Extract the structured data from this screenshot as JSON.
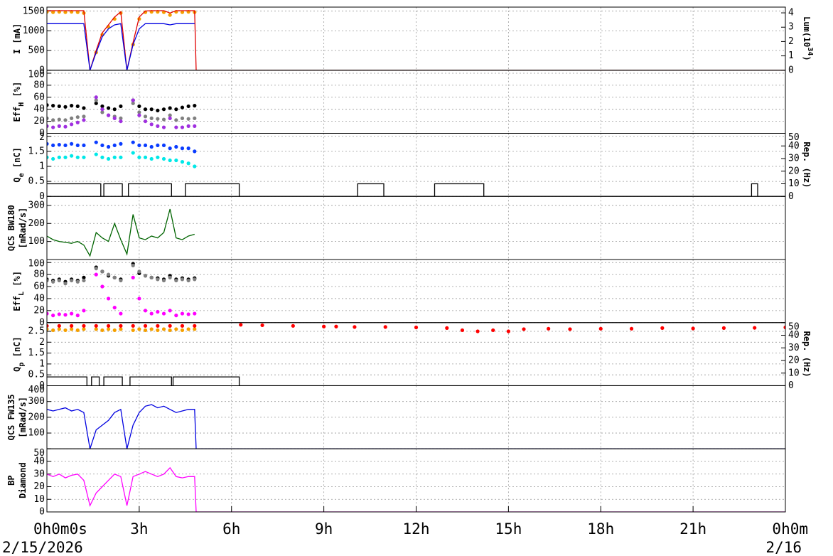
{
  "date_labels": [
    "2/15/2026",
    "2/16"
  ],
  "chart_data": [
    {
      "type": "line",
      "ylabel": [
        [
          {
            "text": "I [mA]"
          }
        ]
      ],
      "y2label": [
        [
          {
            "text": "Lum(10"
          },
          {
            "text": "34",
            "sup": true
          },
          {
            "text": ")"
          }
        ]
      ],
      "xlim": [
        0,
        24
      ],
      "ylim": [
        0,
        1600
      ],
      "yticks": [
        0,
        500,
        1000,
        1500
      ],
      "y2lim": [
        0,
        4.4
      ],
      "y2ticks": [
        0,
        1,
        2,
        3,
        4
      ],
      "grid": true,
      "x": [
        0,
        0.2,
        0.4,
        0.6,
        0.8,
        1,
        1.2,
        1.4,
        1.6,
        1.8,
        2,
        2.2,
        2.4,
        2.6,
        2.8,
        3,
        3.2,
        3.4,
        3.6,
        3.8,
        4,
        4.2,
        4.4,
        4.6,
        4.8
      ],
      "series": [
        {
          "style": "scatter",
          "color": "#f5a000",
          "values": [
            1480,
            1470,
            1480,
            1470,
            1480,
            1470,
            1450,
            null,
            450,
            900,
            1100,
            1300,
            1450,
            null,
            650,
            1300,
            1470,
            1480,
            1480,
            1470,
            1400,
            1480,
            1470,
            1480,
            1470
          ]
        },
        {
          "style": "line",
          "color": "#e00000",
          "x": [
            0,
            0.2,
            0.4,
            0.6,
            0.8,
            1,
            1.2,
            1.4,
            1.6,
            1.8,
            2,
            2.2,
            2.4,
            2.6,
            2.8,
            3,
            3.2,
            3.4,
            3.6,
            3.8,
            4,
            4.2,
            4.4,
            4.6,
            4.8,
            4.85,
            24
          ],
          "values": [
            1510,
            1510,
            1510,
            1510,
            1510,
            1510,
            1510,
            0,
            500,
            950,
            1150,
            1350,
            1480,
            0,
            700,
            1350,
            1500,
            1510,
            1510,
            1510,
            1450,
            1510,
            1510,
            1510,
            1510,
            0,
            0
          ]
        },
        {
          "style": "line",
          "color": "#0000e0",
          "values": [
            1180,
            1180,
            1180,
            1180,
            1180,
            1180,
            1180,
            0,
            450,
            850,
            1050,
            1150,
            1180,
            0,
            650,
            1050,
            1180,
            1180,
            1180,
            1180,
            1150,
            1180,
            1180,
            1180,
            1180
          ]
        }
      ]
    },
    {
      "type": "line",
      "ylabel": [
        [
          {
            "text": "Eff"
          },
          {
            "text": "H",
            "sub": true
          },
          {
            "text": " [%]"
          }
        ]
      ],
      "xlim": [
        0,
        24
      ],
      "ylim": [
        0,
        105
      ],
      "yticks": [
        0,
        20,
        40,
        60,
        80,
        100
      ],
      "grid": true,
      "x": [
        0,
        0.2,
        0.4,
        0.6,
        0.8,
        1,
        1.2,
        1.4,
        1.6,
        1.8,
        2,
        2.2,
        2.4,
        2.6,
        2.8,
        3,
        3.2,
        3.4,
        3.6,
        3.8,
        4,
        4.2,
        4.4,
        4.6,
        4.8
      ],
      "series": [
        {
          "style": "scatter",
          "color": "#000000",
          "values": [
            47,
            46,
            45,
            44,
            46,
            45,
            42,
            null,
            50,
            45,
            42,
            40,
            45,
            null,
            55,
            45,
            40,
            40,
            38,
            40,
            42,
            40,
            43,
            45,
            46
          ]
        },
        {
          "style": "scatter",
          "color": "#808080",
          "values": [
            25,
            22,
            23,
            22,
            25,
            27,
            28,
            null,
            55,
            35,
            30,
            28,
            25,
            null,
            50,
            35,
            28,
            25,
            24,
            23,
            30,
            22,
            25,
            24,
            25
          ]
        },
        {
          "style": "scatter",
          "color": "#a030e0",
          "values": [
            12,
            10,
            12,
            11,
            15,
            18,
            22,
            null,
            60,
            40,
            30,
            25,
            20,
            null,
            55,
            30,
            20,
            15,
            12,
            10,
            25,
            10,
            10,
            12,
            12
          ]
        }
      ]
    },
    {
      "type": "line",
      "ylabel": [
        [
          {
            "text": "Q"
          },
          {
            "text": "e",
            "sub": true
          },
          {
            "text": " [nC]"
          }
        ]
      ],
      "y2label": [
        [
          {
            "text": "Rep. (Hz)"
          }
        ]
      ],
      "xlim": [
        0,
        24
      ],
      "ylim": [
        0,
        2.1
      ],
      "yticks": [
        0,
        0.5,
        1,
        1.5,
        2
      ],
      "y2lim": [
        0,
        50
      ],
      "y2ticks": [
        0,
        10,
        20,
        30,
        40,
        50
      ],
      "grid": true,
      "x": [
        0,
        0.2,
        0.4,
        0.6,
        0.8,
        1,
        1.2,
        1.4,
        1.6,
        1.8,
        2,
        2.2,
        2.4,
        2.6,
        2.8,
        3,
        3.2,
        3.4,
        3.6,
        3.8,
        4,
        4.2,
        4.4,
        4.6,
        4.8
      ],
      "series": [
        {
          "style": "scatter",
          "color": "#0a3cff",
          "values": [
            1.75,
            1.7,
            1.72,
            1.7,
            1.75,
            1.7,
            1.7,
            null,
            1.8,
            1.7,
            1.65,
            1.7,
            1.75,
            null,
            1.8,
            1.7,
            1.7,
            1.65,
            1.7,
            1.7,
            1.6,
            1.65,
            1.6,
            1.6,
            1.5
          ]
        },
        {
          "style": "scatter",
          "color": "#00e8e8",
          "values": [
            1.3,
            1.25,
            1.3,
            1.3,
            1.35,
            1.3,
            1.3,
            null,
            1.4,
            1.3,
            1.25,
            1.3,
            1.3,
            null,
            1.45,
            1.3,
            1.3,
            1.25,
            1.3,
            1.25,
            1.2,
            1.2,
            1.15,
            1.1,
            1.0
          ]
        },
        {
          "style": "line",
          "axis": "y2",
          "color": "#000000",
          "x": [
            0,
            1.75,
            1.75,
            1.85,
            1.85,
            2.45,
            2.45,
            2.65,
            2.65,
            4.05,
            4.05,
            4.5,
            4.5,
            6.25,
            6.25,
            10.1,
            10.1,
            10.95,
            10.95,
            12.6,
            12.6,
            14.2,
            14.2,
            22.9,
            22.9,
            23.1,
            23.1,
            24
          ],
          "values": [
            10,
            10,
            0,
            0,
            10,
            10,
            0,
            0,
            10,
            10,
            0,
            0,
            10,
            10,
            0,
            0,
            10,
            10,
            0,
            0,
            10,
            10,
            0,
            0,
            10,
            10,
            0,
            0
          ]
        }
      ]
    },
    {
      "type": "line",
      "ylabel": [
        [
          {
            "text": "QCS BW180"
          }
        ],
        [
          {
            "text": "[mRad/s]"
          }
        ]
      ],
      "xlim": [
        0,
        24
      ],
      "ylim": [
        0,
        350
      ],
      "yticks": [
        100,
        200,
        300
      ],
      "grid": true,
      "x": [
        0,
        0.2,
        0.4,
        0.6,
        0.8,
        1,
        1.2,
        1.4,
        1.6,
        1.8,
        2,
        2.2,
        2.4,
        2.6,
        2.8,
        3,
        3.2,
        3.4,
        3.6,
        3.8,
        4,
        4.2,
        4.4,
        4.6,
        4.8
      ],
      "series": [
        {
          "style": "line",
          "color": "#006400",
          "values": [
            130,
            110,
            100,
            95,
            90,
            100,
            80,
            20,
            150,
            120,
            100,
            200,
            110,
            30,
            250,
            120,
            110,
            130,
            120,
            150,
            280,
            120,
            110,
            130,
            140
          ]
        }
      ]
    },
    {
      "type": "line",
      "ylabel": [
        [
          {
            "text": "Eff"
          },
          {
            "text": "L",
            "sub": true
          },
          {
            "text": " [%]"
          }
        ]
      ],
      "xlim": [
        0,
        24
      ],
      "ylim": [
        0,
        105
      ],
      "yticks": [
        0,
        20,
        40,
        60,
        80,
        100
      ],
      "grid": true,
      "x": [
        0,
        0.2,
        0.4,
        0.6,
        0.8,
        1,
        1.2,
        1.4,
        1.6,
        1.8,
        2,
        2.2,
        2.4,
        2.6,
        2.8,
        3,
        3.2,
        3.4,
        3.6,
        3.8,
        4,
        4.2,
        4.4,
        4.6,
        4.8
      ],
      "series": [
        {
          "style": "scatter",
          "color": "#000000",
          "values": [
            72,
            70,
            72,
            68,
            72,
            70,
            75,
            null,
            92,
            85,
            78,
            75,
            72,
            null,
            98,
            82,
            78,
            75,
            74,
            72,
            78,
            72,
            74,
            72,
            74
          ]
        },
        {
          "style": "scatter",
          "color": "#808080",
          "values": [
            70,
            68,
            70,
            65,
            70,
            68,
            70,
            null,
            90,
            85,
            80,
            75,
            70,
            null,
            95,
            85,
            78,
            75,
            72,
            70,
            75,
            70,
            72,
            70,
            72
          ]
        },
        {
          "style": "scatter",
          "color": "#ff00ff",
          "values": [
            15,
            12,
            14,
            13,
            15,
            12,
            20,
            null,
            80,
            60,
            40,
            25,
            15,
            null,
            75,
            40,
            20,
            15,
            18,
            15,
            20,
            12,
            15,
            14,
            15
          ]
        }
      ]
    },
    {
      "type": "line",
      "ylabel": [
        [
          {
            "text": "Q"
          },
          {
            "text": "p",
            "sub": true
          },
          {
            "text": " [nC]"
          }
        ]
      ],
      "y2label": [
        [
          {
            "text": "Rep. (Hz)"
          }
        ]
      ],
      "xlim": [
        0,
        24
      ],
      "ylim": [
        0,
        2.9
      ],
      "yticks": [
        0,
        0.5,
        1,
        1.5,
        2,
        2.5
      ],
      "y2lim": [
        0,
        50
      ],
      "y2ticks": [
        0,
        10,
        20,
        30,
        40,
        50
      ],
      "grid": true,
      "x": [
        0,
        0.2,
        0.4,
        0.6,
        0.8,
        1,
        1.2,
        1.4,
        1.6,
        1.8,
        2,
        2.2,
        2.4,
        2.6,
        2.8,
        3,
        3.2,
        3.4,
        3.6,
        3.8,
        4,
        4.2,
        4.4,
        4.6,
        4.8
      ],
      "series": [
        {
          "style": "scatter",
          "color": "#f5a000",
          "values": [
            2.6,
            2.55,
            2.6,
            2.55,
            2.6,
            2.55,
            2.6,
            null,
            2.6,
            2.55,
            2.6,
            2.55,
            2.6,
            null,
            2.55,
            2.6,
            2.55,
            2.6,
            2.55,
            2.6,
            2.55,
            2.6,
            2.55,
            2.6,
            2.6
          ]
        },
        {
          "style": "scatter",
          "color": "#ff0000",
          "x": [
            0,
            0.4,
            0.8,
            1.2,
            1.6,
            2,
            2.4,
            2.8,
            3.2,
            3.6,
            4,
            4.4,
            4.8,
            4.9,
            6.3,
            7,
            8,
            9,
            9.1,
            9.4,
            10,
            11,
            12,
            13,
            13.5,
            14,
            14.5,
            15,
            15.5,
            15.6,
            16.3,
            17,
            18,
            19,
            20,
            21,
            22,
            23,
            24
          ],
          "values": [
            2.75,
            2.75,
            2.75,
            2.75,
            2.75,
            2.75,
            2.75,
            2.75,
            2.75,
            2.75,
            2.75,
            2.75,
            2.75,
            null,
            2.8,
            2.78,
            2.75,
            2.72,
            null,
            2.72,
            2.7,
            2.7,
            2.68,
            2.65,
            2.55,
            2.5,
            2.55,
            2.5,
            2.6,
            null,
            2.62,
            2.6,
            2.62,
            2.62,
            2.65,
            2.63,
            2.65,
            2.66,
            2.68
          ]
        },
        {
          "style": "line",
          "axis": "y2",
          "color": "#000000",
          "x": [
            0,
            1.3,
            1.3,
            1.45,
            1.45,
            1.7,
            1.7,
            1.85,
            1.85,
            2.45,
            2.45,
            2.7,
            2.7,
            4.05,
            4.05,
            4.1,
            4.1,
            6.25,
            6.25,
            24
          ],
          "values": [
            7,
            7,
            0,
            0,
            7,
            7,
            0,
            0,
            7,
            7,
            0,
            0,
            7,
            7,
            0,
            0,
            7,
            7,
            0,
            0
          ]
        }
      ]
    },
    {
      "type": "line",
      "ylabel": [
        [
          {
            "text": "QCS FW135"
          }
        ],
        [
          {
            "text": "[mRad/s]"
          }
        ]
      ],
      "xlim": [
        0,
        24
      ],
      "ylim": [
        0,
        400
      ],
      "yticks": [
        100,
        200,
        300,
        400
      ],
      "grid": true,
      "x": [
        0,
        0.2,
        0.4,
        0.6,
        0.8,
        1,
        1.2,
        1.4,
        1.6,
        1.8,
        2,
        2.2,
        2.4,
        2.6,
        2.8,
        3,
        3.2,
        3.4,
        3.6,
        3.8,
        4,
        4.2,
        4.4,
        4.6,
        4.8,
        4.85,
        24
      ],
      "series": [
        {
          "style": "line",
          "color": "#0000e0",
          "values": [
            250,
            240,
            250,
            260,
            240,
            250,
            230,
            0,
            120,
            150,
            180,
            230,
            250,
            0,
            150,
            230,
            270,
            280,
            260,
            270,
            250,
            230,
            240,
            250,
            250,
            0,
            0
          ]
        }
      ]
    },
    {
      "type": "line",
      "ylabel": [
        [
          {
            "text": "BP"
          }
        ],
        [
          {
            "text": "Diamond"
          }
        ]
      ],
      "xlim": [
        0,
        24
      ],
      "ylim": [
        0,
        50
      ],
      "yticks": [
        0,
        10,
        20,
        30,
        40,
        50
      ],
      "grid": true,
      "xticks": [
        {
          "value": 0,
          "label": "0h0m0s"
        },
        {
          "value": 3,
          "label": "3h"
        },
        {
          "value": 6,
          "label": "6h"
        },
        {
          "value": 9,
          "label": "9h"
        },
        {
          "value": 12,
          "label": "12h"
        },
        {
          "value": 15,
          "label": "15h"
        },
        {
          "value": 18,
          "label": "18h"
        },
        {
          "value": 21,
          "label": "21h"
        },
        {
          "value": 24,
          "label": "0h0m"
        }
      ],
      "x": [
        0,
        0.2,
        0.4,
        0.6,
        0.8,
        1,
        1.2,
        1.4,
        1.6,
        1.8,
        2,
        2.2,
        2.4,
        2.6,
        2.8,
        3,
        3.2,
        3.4,
        3.6,
        3.8,
        4,
        4.2,
        4.4,
        4.6,
        4.8,
        4.85,
        24
      ],
      "series": [
        {
          "style": "line",
          "color": "#ff00ff",
          "values": [
            30,
            28,
            30,
            27,
            29,
            30,
            25,
            5,
            15,
            20,
            25,
            30,
            28,
            5,
            28,
            30,
            32,
            30,
            28,
            30,
            35,
            28,
            27,
            28,
            28,
            0,
            0
          ]
        }
      ]
    }
  ]
}
